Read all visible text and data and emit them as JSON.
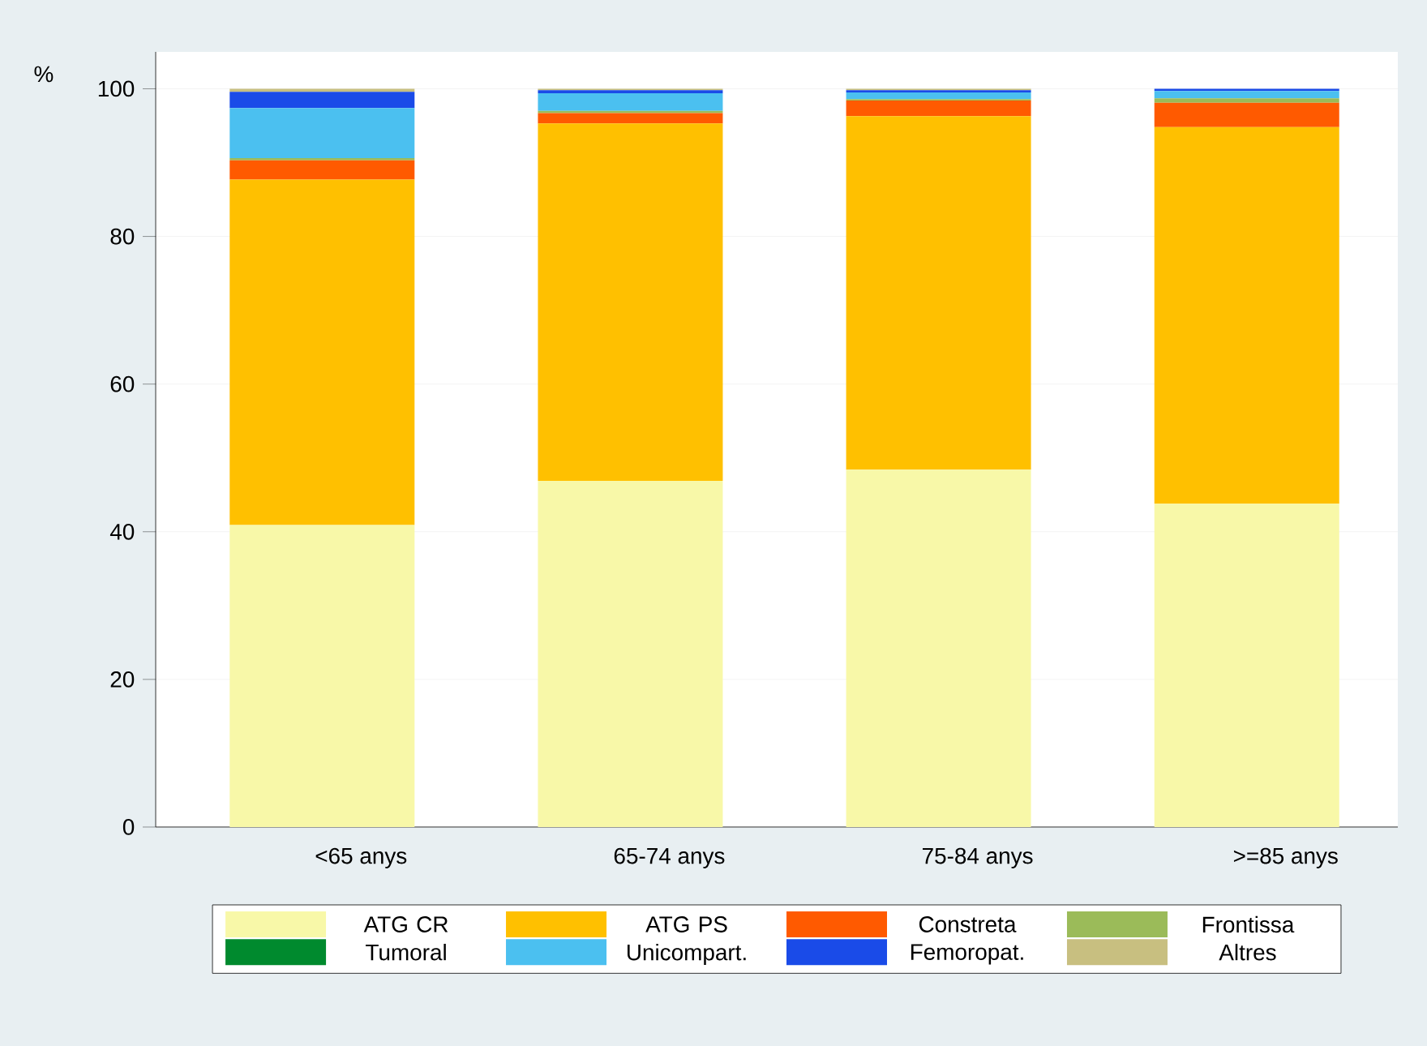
{
  "chart_data": {
    "type": "bar",
    "stacked": true,
    "ylabel": "%",
    "categories": [
      "<65 anys",
      "65-74 anys",
      "75-84 anys",
      ">=85 anys"
    ],
    "series": [
      {
        "name": "ATG CR",
        "color": "#f8f8a8",
        "values": [
          40.9,
          46.9,
          48.4,
          43.8
        ]
      },
      {
        "name": "ATG PS",
        "color": "#ffc000",
        "values": [
          46.8,
          48.4,
          47.9,
          51.0
        ]
      },
      {
        "name": "Constreta",
        "color": "#ff5a00",
        "values": [
          2.6,
          1.4,
          2.1,
          3.3
        ]
      },
      {
        "name": "Frontissa",
        "color": "#9bbb59",
        "values": [
          0.3,
          0.3,
          0.2,
          0.6
        ]
      },
      {
        "name": "Tumoral",
        "color": "#008a2e",
        "values": [
          0,
          0,
          0,
          0
        ]
      },
      {
        "name": "Unicompart.",
        "color": "#4bc0f0",
        "values": [
          6.8,
          2.4,
          0.9,
          1.0
        ]
      },
      {
        "name": "Femoropat.",
        "color": "#1a4be8",
        "values": [
          2.2,
          0.4,
          0.3,
          0.3
        ]
      },
      {
        "name": "Altres",
        "color": "#c8bf80",
        "values": [
          0.4,
          0.2,
          0.2,
          0
        ]
      }
    ],
    "ylim": [
      0,
      105
    ],
    "yticks": [
      0,
      20,
      40,
      60,
      80,
      100
    ],
    "grid": "y",
    "legend": "bottom"
  }
}
